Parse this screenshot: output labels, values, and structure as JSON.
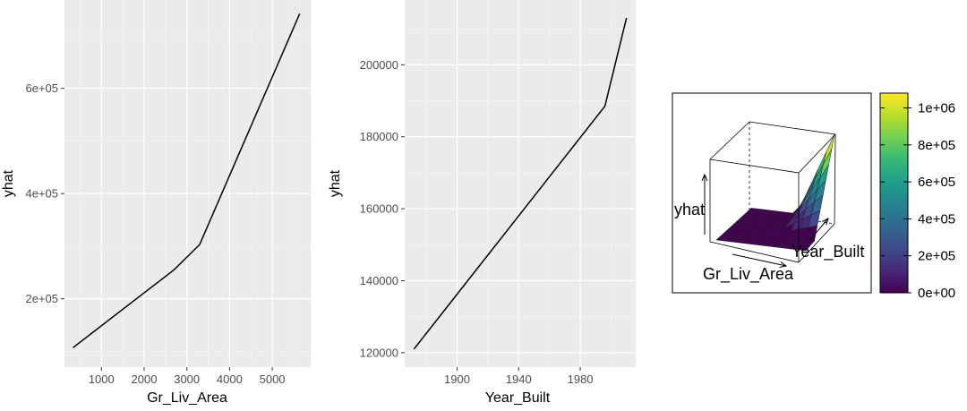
{
  "chart_data": [
    {
      "type": "line",
      "title": "",
      "xlabel": "Gr_Liv_Area",
      "ylabel": "yhat",
      "xlim": [
        134,
        5900
      ],
      "ylim": [
        70000,
        768000
      ],
      "x_ticks": [
        1000,
        2000,
        3000,
        4000,
        5000
      ],
      "x_tick_labels": [
        "1000",
        "2000",
        "3000",
        "4000",
        "5000"
      ],
      "y_ticks": [
        200000,
        400000,
        600000
      ],
      "y_tick_labels": [
        "2e+05",
        "4e+05",
        "6e+05"
      ],
      "grid": true,
      "series": [
        {
          "color": "#000000",
          "x": [
            334,
            2700,
            3300,
            5642
          ],
          "y": [
            107000,
            255000,
            303000,
            742000
          ]
        }
      ]
    },
    {
      "type": "line",
      "title": "",
      "xlabel": "Year_Built",
      "ylabel": "yhat",
      "xlim": [
        1866,
        2016
      ],
      "ylim": [
        116000,
        218000
      ],
      "x_ticks": [
        1900,
        1940,
        1980
      ],
      "x_tick_labels": [
        "1900",
        "1940",
        "1980"
      ],
      "y_ticks": [
        120000,
        140000,
        160000,
        180000,
        200000
      ],
      "y_tick_labels": [
        "120000",
        "140000",
        "160000",
        "180000",
        "200000"
      ],
      "grid": true,
      "series": [
        {
          "color": "#000000",
          "x": [
            1872,
            1996,
            2010
          ],
          "y": [
            121000,
            188500,
            213000
          ]
        }
      ]
    },
    {
      "type": "surface",
      "title": "",
      "xlabel": "Gr_Liv_Area",
      "ylabel": "Year_Built",
      "zlabel": "yhat",
      "colorbar": {
        "palette": "viridis",
        "range": [
          0,
          1080000
        ],
        "ticks": [
          0,
          200000,
          400000,
          600000,
          800000,
          1000000
        ],
        "tick_labels": [
          "0e+00",
          "2e+05",
          "4e+05",
          "6e+05",
          "8e+05",
          "1e+06"
        ],
        "colors": [
          "#440154",
          "#482878",
          "#3e4a89",
          "#31688e",
          "#26828e",
          "#1f9e89",
          "#35b779",
          "#6ece58",
          "#b5de2b",
          "#fde725"
        ]
      }
    }
  ]
}
